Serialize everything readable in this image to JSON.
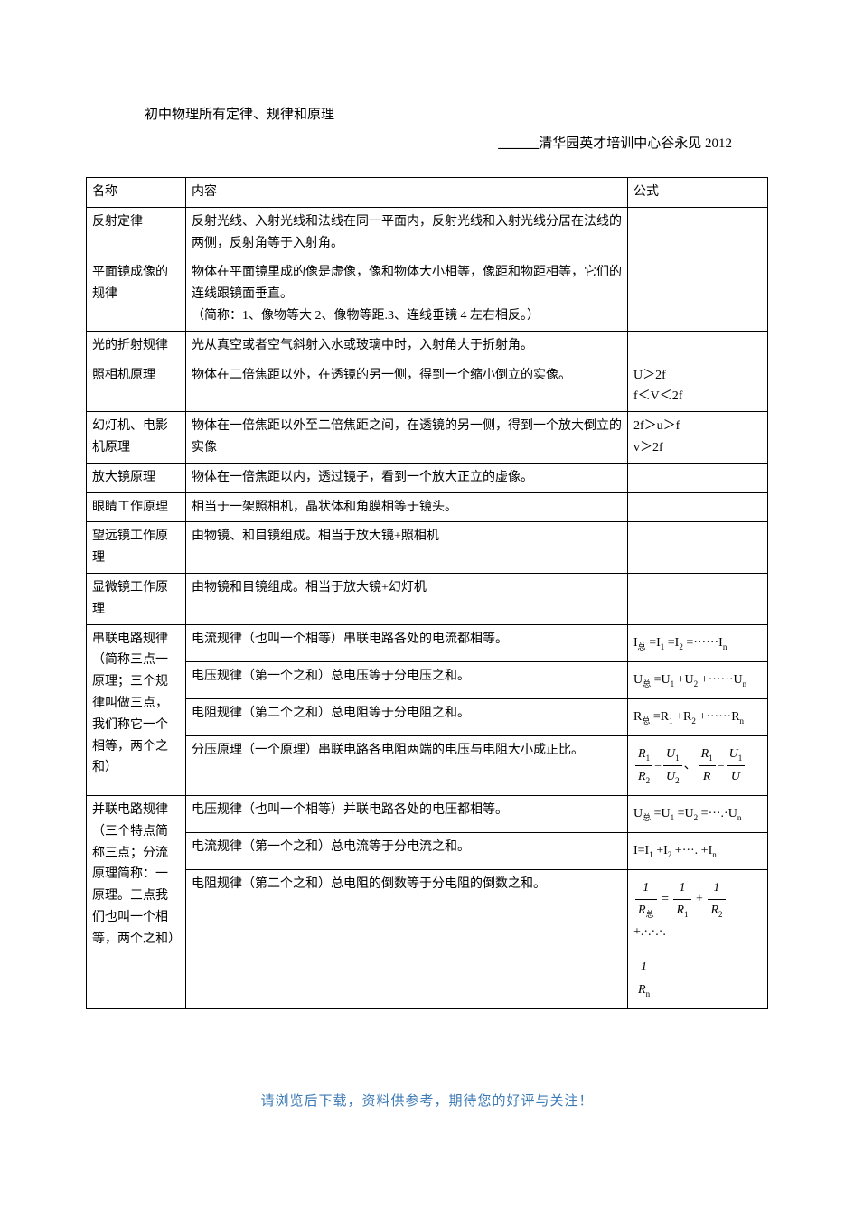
{
  "title": "初中物理所有定律、规律和原理",
  "subtitle_prefix": "______",
  "subtitle": "清华园英才培训中心谷永见 2012",
  "headers": {
    "name": "名称",
    "content": "内容",
    "formula": "公式"
  },
  "rows": [
    {
      "name": "反射定律",
      "content": "反射光线、入射光线和法线在同一平面内，反射光线和入射光线分居在法线的两侧，反射角等于入射角。",
      "formula": ""
    },
    {
      "name": "平面镜成像的规律",
      "content": "物体在平面镜里成的像是虚像，像和物体大小相等，像距和物距相等，它们的连线跟镜面垂直。\n（简称：1、像物等大 2、像物等距.3、连线垂镜 4 左右相反。）",
      "formula": ""
    },
    {
      "name": "光的折射规律",
      "content": "光从真空或者空气斜射入水或玻璃中时，入射角大于折射角。",
      "formula": ""
    },
    {
      "name": "照相机原理",
      "content": "物体在二倍焦距以外，在透镜的另一侧，得到一个缩小倒立的实像。",
      "formula": "U＞2f\nf＜V＜2f"
    },
    {
      "name": "幻灯机、电影机原理",
      "content": "物体在一倍焦距以外至二倍焦距之间，在透镜的另一侧，得到一个放大倒立的实像",
      "formula": "2f＞u＞f\nv＞2f"
    },
    {
      "name": "放大镜原理",
      "content": "物体在一倍焦距以内，透过镜子，看到一个放大正立的虚像。",
      "formula": ""
    },
    {
      "name": "眼睛工作原理",
      "content": "相当于一架照相机，晶状体和角膜相等于镜头。",
      "formula": ""
    },
    {
      "name": "望远镜工作原理",
      "content": "由物镜、和目镜组成。相当于放大镜+照相机",
      "formula": ""
    },
    {
      "name": "显微镜工作原理",
      "content": "由物镜和目镜组成。相当于放大镜+幻灯机",
      "formula": ""
    }
  ],
  "series_group": {
    "name": "串联电路规律（简称三点一原理；三个规律叫做三点，我们称它一个相等，两个之和）",
    "rows": [
      {
        "content": "电流规律（也叫一个相等）串联电路各处的电流都相等。",
        "formula_text": "I 总 =I₁ =I₂ =······I n",
        "formula_type": "text",
        "parts": [
          "I",
          "总",
          "=I",
          "1",
          "=I",
          "2",
          "=······I",
          "n"
        ]
      },
      {
        "content": "电压规律（第一个之和）总电压等于分电压之和。",
        "formula_type": "text",
        "parts": [
          "U",
          "总",
          "=U",
          "1",
          "+U",
          "2",
          "+······U",
          "n"
        ]
      },
      {
        "content": "电阻规律（第二个之和）总电阻等于分电阻之和。",
        "formula_type": "text",
        "parts": [
          "R",
          "总",
          "=R",
          "1",
          "+R",
          "2",
          "+······R",
          "n"
        ]
      },
      {
        "content": "分压原理（一个原理）串联电路各电阻两端的电压与电阻大小成正比。",
        "formula_type": "frac_pair",
        "fracs": [
          {
            "n1": "R",
            "s1": "1",
            "d1": "R",
            "sd1": "2",
            "eq": "=",
            "n2": "U",
            "s2": "1",
            "d2": "U",
            "sd2": "2"
          },
          {
            "n1": "R",
            "s1": "1",
            "d1": "R",
            "sd1": "",
            "eq": "=",
            "n2": "U",
            "s2": "1",
            "d2": "U",
            "sd2": ""
          }
        ],
        "separator": "、"
      }
    ]
  },
  "parallel_group": {
    "name": "并联电路规律（三个特点简称三点；分流原理简称：一原理。三点我们也叫一个相等，两个之和）",
    "rows": [
      {
        "content": "电压规律（也叫一个相等）并联电路各处的电压都相等。",
        "formula_type": "text",
        "parts": [
          "U",
          "总",
          "=U",
          "1",
          "=U",
          "2",
          "=···.·U",
          "n"
        ]
      },
      {
        "content": "电流规律（第一个之和）总电流等于分电流之和。",
        "formula_type": "text",
        "parts": [
          "I=I",
          "1",
          "+I",
          "2",
          "+···.  +I",
          "n"
        ]
      },
      {
        "content": "电阻规律（第二个之和）总电阻的倒数等于分电阻的倒数之和。",
        "formula_type": "frac_sum",
        "terms": [
          {
            "num": "1",
            "den": "R",
            "densub": "总"
          },
          {
            "op": "="
          },
          {
            "num": "1",
            "den": "R",
            "densub": "1"
          },
          {
            "op": "+"
          },
          {
            "num": "1",
            "den": "R",
            "densub": "2"
          },
          {
            "op": "+.·.·.·."
          }
        ],
        "trailing": {
          "num": "1",
          "den": "R",
          "densub": "n"
        }
      }
    ]
  },
  "footer": "请浏览后下载，资料供参考，期待您的好评与关注！"
}
